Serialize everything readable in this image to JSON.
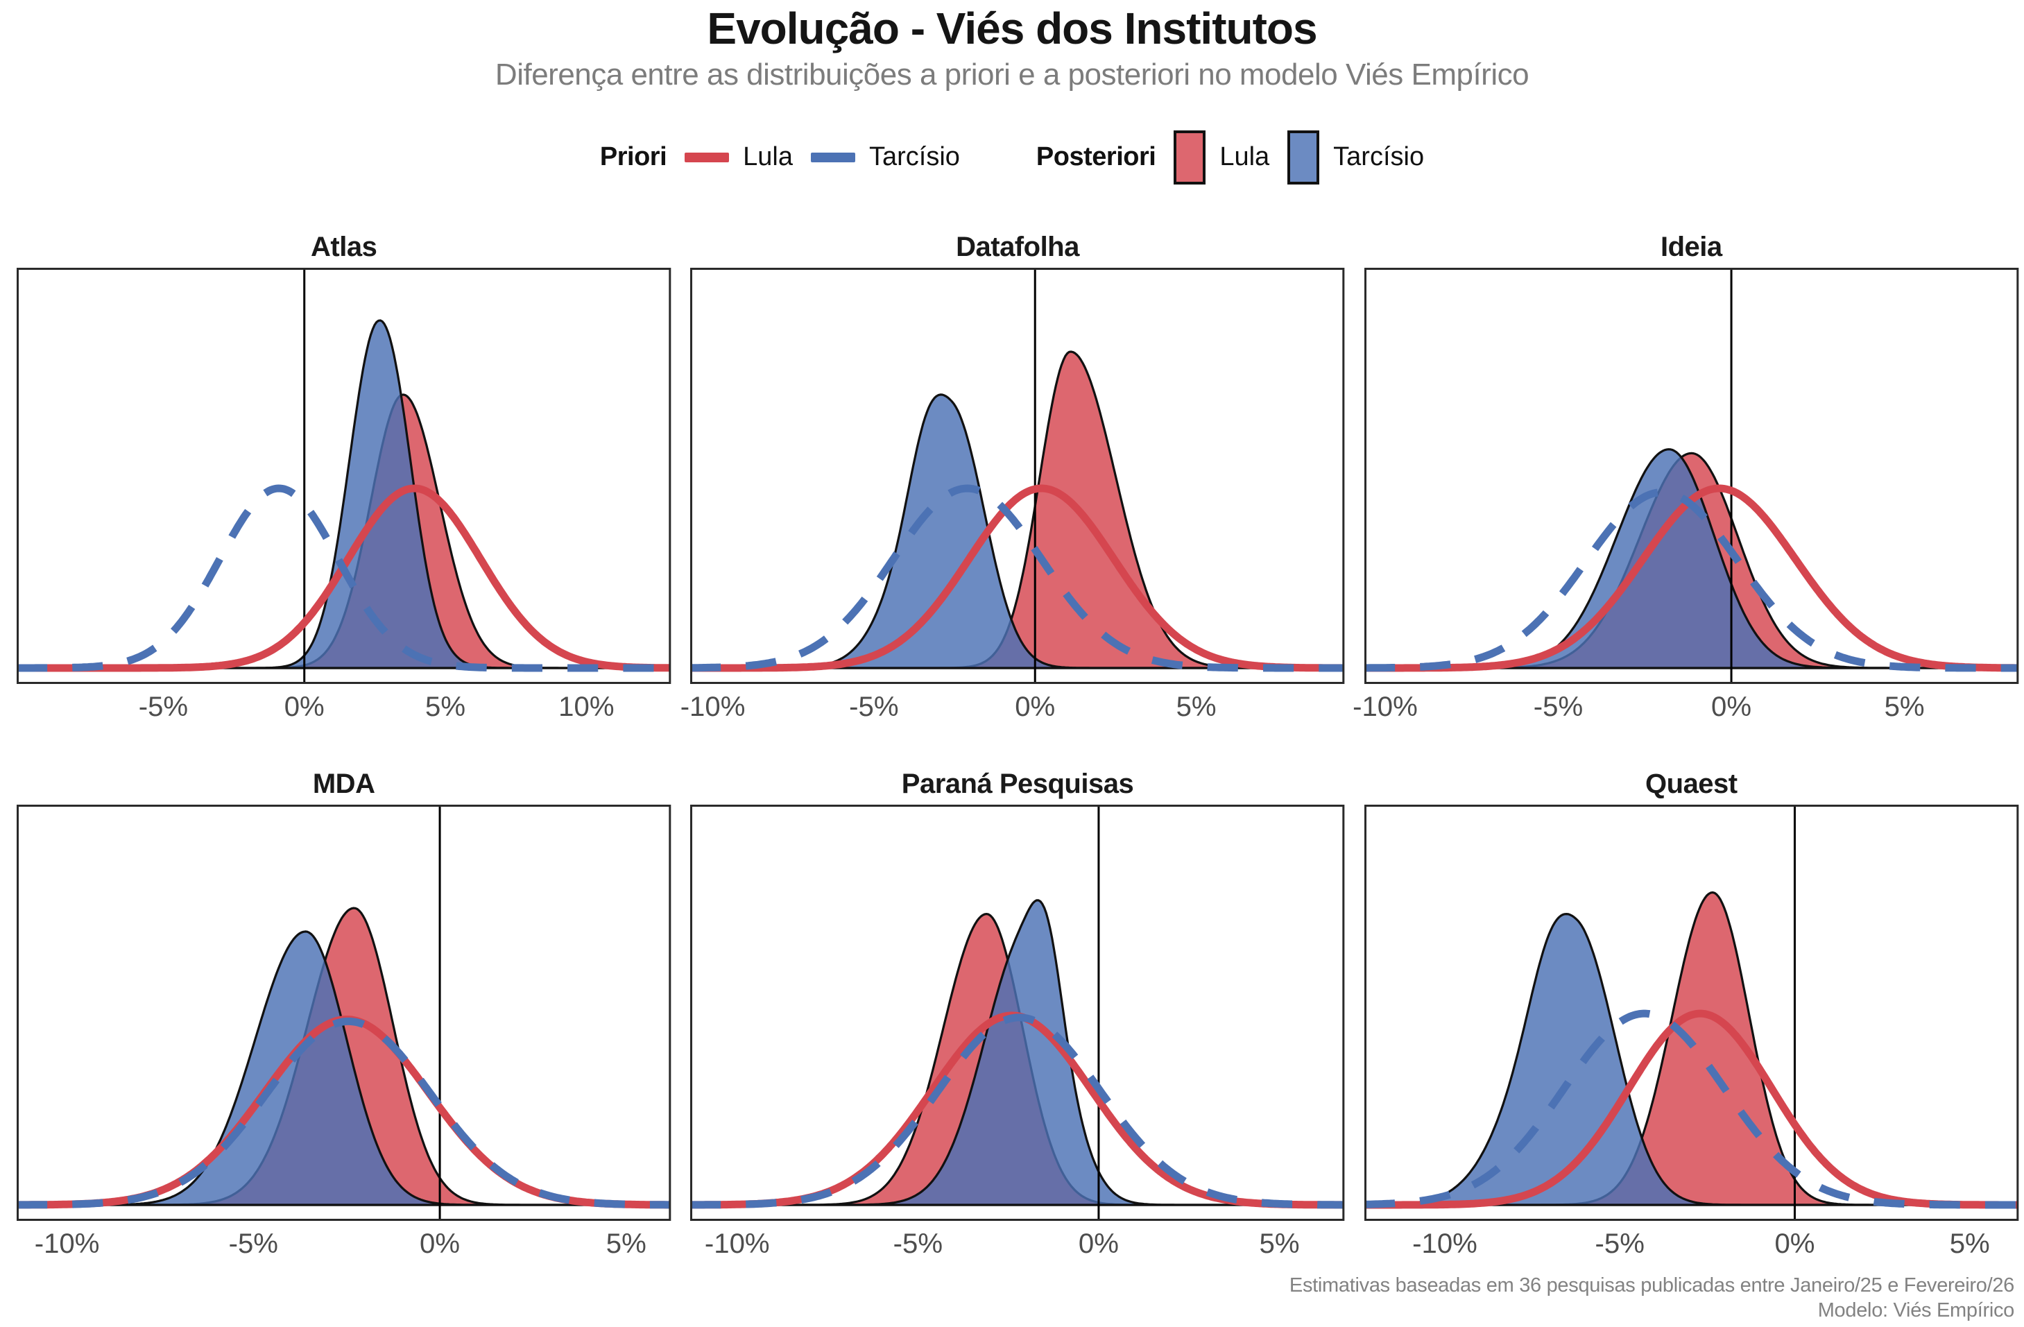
{
  "header": {
    "title": "Evolução - Viés dos Institutos",
    "subtitle": "Diferença entre as distribuições a priori e a posteriori no modelo Viés Empírico"
  },
  "legend": {
    "priori_label": "Priori",
    "posteriori_label": "Posteriori",
    "lula": "Lula",
    "tarcisio": "Tarcísio"
  },
  "colors": {
    "lula": "#D5464F",
    "tarcisio": "#4C72B4",
    "outline": "#111111",
    "zero_line": "#000000",
    "panel_border": "#2A2A2A",
    "tick_text": "#4D4D4D",
    "fill_opacity": 0.82
  },
  "footer": {
    "caption_line1": "Estimativas baseadas em 36 pesquisas publicadas entre Janeiro/25 e Fevereiro/26",
    "caption_line2": "Modelo: Viés Empírico"
  },
  "chart_data": {
    "type": "area",
    "subtype": "density",
    "x_unit": "percent",
    "zero_reference_line": 0,
    "panels": [
      {
        "title": "Atlas",
        "xlim": [
          -10.2,
          13.0
        ],
        "ticks": [
          -5,
          0,
          5,
          10
        ],
        "tick_labels": [
          "-5%",
          "0%",
          "5%",
          "10%"
        ],
        "series": [
          {
            "id": "posterior-lula",
            "kind": "posterior",
            "candidate": "Lula",
            "style": "filled",
            "peak_x": 3.5,
            "sd_left": 1.15,
            "sd_right": 1.3,
            "peak_height": 0.7,
            "bump": null
          },
          {
            "id": "posterior-tarcisio",
            "kind": "posterior",
            "candidate": "Tarcísio",
            "style": "filled",
            "peak_x": 2.55,
            "sd_left": 1.0,
            "sd_right": 1.1,
            "peak_height": 0.89,
            "bump": {
              "x": 3.3,
              "sd": 0.7,
              "w": 0.12
            }
          },
          {
            "id": "prior-lula",
            "kind": "prior",
            "candidate": "Lula",
            "style": "solid-line",
            "peak_x": 3.9,
            "sd": 2.35,
            "peak_height": 0.46
          },
          {
            "id": "prior-tarcisio",
            "kind": "prior",
            "candidate": "Tarcísio",
            "style": "dashed-line",
            "peak_x": -0.9,
            "sd": 2.1,
            "peak_height": 0.46
          }
        ]
      },
      {
        "title": "Datafolha",
        "xlim": [
          -10.7,
          9.6
        ],
        "ticks": [
          -10,
          -5,
          0,
          5
        ],
        "tick_labels": [
          "-10%",
          "-5%",
          "0%",
          "5%"
        ],
        "series": [
          {
            "id": "posterior-lula",
            "kind": "posterior",
            "candidate": "Lula",
            "style": "filled",
            "peak_x": 1.1,
            "sd_left": 0.95,
            "sd_right": 1.4,
            "peak_height": 0.81,
            "bump": null
          },
          {
            "id": "posterior-tarcisio",
            "kind": "posterior",
            "candidate": "Tarcísio",
            "style": "filled",
            "peak_x": -2.55,
            "sd_left": 1.35,
            "sd_right": 1.0,
            "peak_height": 0.7,
            "bump": {
              "x": -3.4,
              "sd": 0.55,
              "w": 0.18
            }
          },
          {
            "id": "prior-lula",
            "kind": "prior",
            "candidate": "Lula",
            "style": "solid-line",
            "peak_x": 0.2,
            "sd": 2.25,
            "peak_height": 0.46
          },
          {
            "id": "prior-tarcisio",
            "kind": "prior",
            "candidate": "Tarcísio",
            "style": "dashed-line",
            "peak_x": -2.1,
            "sd": 2.3,
            "peak_height": 0.46
          }
        ]
      },
      {
        "title": "Ideia",
        "xlim": [
          -10.6,
          8.3
        ],
        "ticks": [
          -10,
          -5,
          0,
          5
        ],
        "tick_labels": [
          "-10%",
          "-5%",
          "0%",
          "5%"
        ],
        "series": [
          {
            "id": "posterior-lula",
            "kind": "posterior",
            "candidate": "Lula",
            "style": "filled",
            "peak_x": -1.15,
            "sd_left": 1.5,
            "sd_right": 1.35,
            "peak_height": 0.55,
            "bump": null
          },
          {
            "id": "posterior-tarcisio",
            "kind": "posterior",
            "candidate": "Tarcísio",
            "style": "filled",
            "peak_x": -1.8,
            "sd_left": 1.5,
            "sd_right": 1.3,
            "peak_height": 0.56,
            "bump": null
          },
          {
            "id": "prior-lula",
            "kind": "prior",
            "candidate": "Lula",
            "style": "solid-line",
            "peak_x": -0.35,
            "sd": 2.2,
            "peak_height": 0.46
          },
          {
            "id": "prior-tarcisio",
            "kind": "prior",
            "candidate": "Tarcísio",
            "style": "dashed-line",
            "peak_x": -2.0,
            "sd": 2.2,
            "peak_height": 0.45
          }
        ]
      },
      {
        "title": "MDA",
        "xlim": [
          -11.35,
          6.2
        ],
        "ticks": [
          -10,
          -5,
          0,
          5
        ],
        "tick_labels": [
          "-10%",
          "-5%",
          "0%",
          "5%"
        ],
        "series": [
          {
            "id": "posterior-lula",
            "kind": "posterior",
            "candidate": "Lula",
            "style": "filled",
            "peak_x": -2.3,
            "sd_left": 1.25,
            "sd_right": 1.05,
            "peak_height": 0.76,
            "bump": null
          },
          {
            "id": "posterior-tarcisio",
            "kind": "posterior",
            "candidate": "Tarcísio",
            "style": "filled",
            "peak_x": -3.6,
            "sd_left": 1.35,
            "sd_right": 1.1,
            "peak_height": 0.7,
            "bump": null
          },
          {
            "id": "prior-lula",
            "kind": "prior",
            "candidate": "Lula",
            "style": "solid-line",
            "peak_x": -2.5,
            "sd": 2.2,
            "peak_height": 0.475
          },
          {
            "id": "prior-tarcisio",
            "kind": "prior",
            "candidate": "Tarcísio",
            "style": "dashed-line",
            "peak_x": -2.45,
            "sd": 2.2,
            "peak_height": 0.47
          }
        ]
      },
      {
        "title": "Paraná Pesquisas",
        "xlim": [
          -11.3,
          6.8
        ],
        "ticks": [
          -10,
          -5,
          0,
          5
        ],
        "tick_labels": [
          "-10%",
          "-5%",
          "0%",
          "5%"
        ],
        "series": [
          {
            "id": "posterior-lula",
            "kind": "posterior",
            "candidate": "Lula",
            "style": "filled",
            "peak_x": -3.1,
            "sd_left": 1.2,
            "sd_right": 1.0,
            "peak_height": 0.745,
            "bump": null
          },
          {
            "id": "posterior-tarcisio",
            "kind": "posterior",
            "candidate": "Tarcísio",
            "style": "filled",
            "peak_x": -1.95,
            "sd_left": 1.2,
            "sd_right": 0.95,
            "peak_height": 0.78,
            "bump": {
              "x": -1.4,
              "sd": 0.4,
              "w": 0.2
            }
          },
          {
            "id": "prior-lula",
            "kind": "prior",
            "candidate": "Lula",
            "style": "solid-line",
            "peak_x": -2.4,
            "sd": 2.2,
            "peak_height": 0.485
          },
          {
            "id": "prior-tarcisio",
            "kind": "prior",
            "candidate": "Tarcísio",
            "style": "dashed-line",
            "peak_x": -2.2,
            "sd": 2.25,
            "peak_height": 0.48
          }
        ]
      },
      {
        "title": "Quaest",
        "xlim": [
          -12.3,
          6.4
        ],
        "ticks": [
          -10,
          -5,
          0,
          5
        ],
        "tick_labels": [
          "-10%",
          "-5%",
          "0%",
          "5%"
        ],
        "series": [
          {
            "id": "posterior-lula",
            "kind": "posterior",
            "candidate": "Lula",
            "style": "filled",
            "peak_x": -2.35,
            "sd_left": 1.15,
            "sd_right": 1.05,
            "peak_height": 0.8,
            "bump": null
          },
          {
            "id": "posterior-tarcisio",
            "kind": "posterior",
            "candidate": "Tarcísio",
            "style": "filled",
            "peak_x": -6.2,
            "sd_left": 1.5,
            "sd_right": 1.1,
            "peak_height": 0.745,
            "bump": {
              "x": -7.0,
              "sd": 0.6,
              "w": 0.15
            }
          },
          {
            "id": "prior-lula",
            "kind": "prior",
            "candidate": "Lula",
            "style": "solid-line",
            "peak_x": -2.7,
            "sd": 2.05,
            "peak_height": 0.49
          },
          {
            "id": "prior-tarcisio",
            "kind": "prior",
            "candidate": "Tarcísio",
            "style": "dashed-line",
            "peak_x": -4.3,
            "sd": 2.3,
            "peak_height": 0.49
          }
        ]
      }
    ]
  }
}
